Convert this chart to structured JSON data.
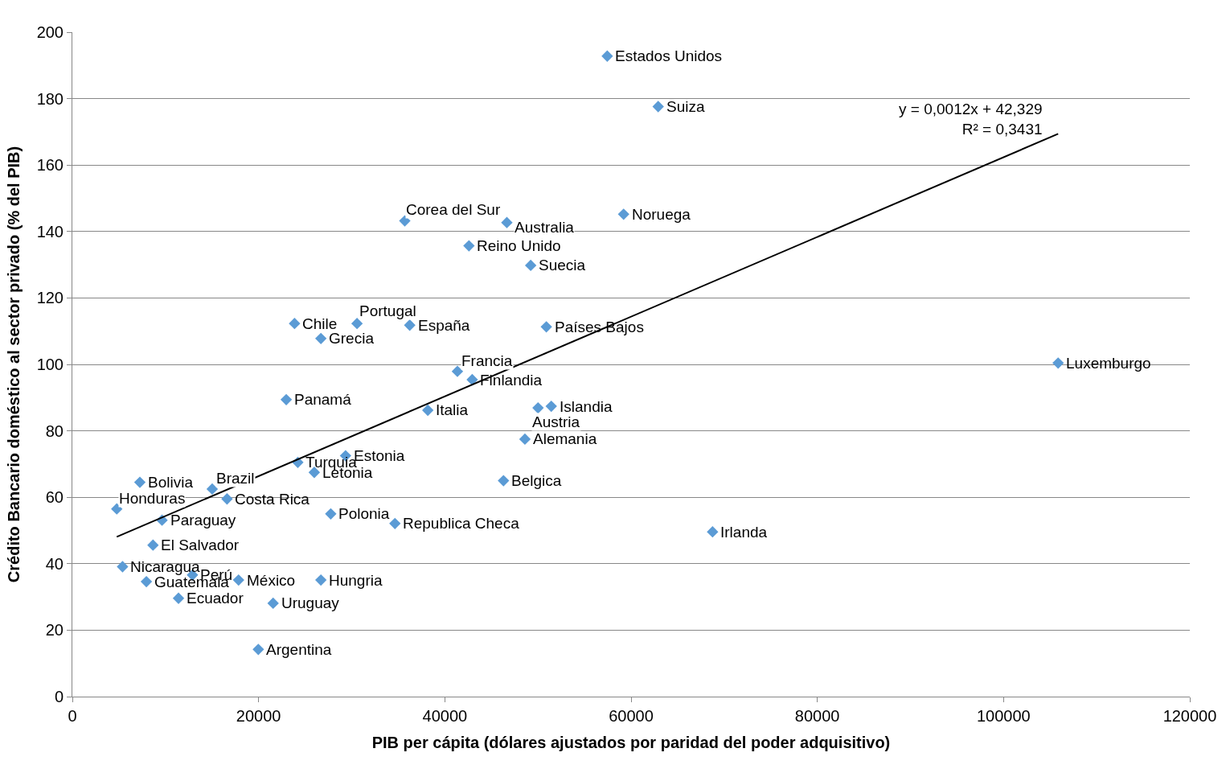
{
  "chart_data": {
    "type": "scatter",
    "xlabel": "PIB per cápita (dólares ajustados por paridad del poder adquisitivo)",
    "ylabel": "Crédito Bancario doméstico al sector privado (% del PIB)",
    "xlim": [
      0,
      120000
    ],
    "xticks": [
      0,
      20000,
      40000,
      60000,
      80000,
      100000,
      120000
    ],
    "ylim": [
      0,
      200
    ],
    "yticks": [
      0,
      20,
      40,
      60,
      80,
      100,
      120,
      140,
      160,
      180,
      200
    ],
    "grid": "y",
    "series": [
      {
        "marker": "diamond",
        "color": "#5b9bd5",
        "x": [
          57440,
          62910,
          59200,
          35700,
          46660,
          42590,
          49220,
          30570,
          23860,
          36230,
          26690,
          50900,
          105860,
          41350,
          42940,
          22970,
          38170,
          50010,
          51430,
          48600,
          29340,
          24210,
          25980,
          7250,
          46300,
          15020,
          16610,
          4770,
          27750,
          9630,
          34640,
          68750,
          8660,
          5390,
          7950,
          12900,
          17850,
          26690,
          11400,
          21560,
          19970
        ],
        "values": [
          192.8,
          177.6,
          145.2,
          143.2,
          142.7,
          135.7,
          129.8,
          112.3,
          112.3,
          111.8,
          107.8,
          111.3,
          100.4,
          97.9,
          95.4,
          89.4,
          86.2,
          86.9,
          87.4,
          77.5,
          72.5,
          70.5,
          67.5,
          64.5,
          65.0,
          62.5,
          59.5,
          56.5,
          55.0,
          53.1,
          52.1,
          49.6,
          45.6,
          39.1,
          34.6,
          36.6,
          35.1,
          35.1,
          29.6,
          28.1,
          14.2
        ]
      },
      {
        "type": "line",
        "marker": "none",
        "color": "#000000",
        "x": [
          4770,
          105860
        ],
        "values": [
          48.1,
          169.4
        ]
      }
    ],
    "annotations": [
      {
        "text": "Estados Unidos",
        "x": 57440,
        "y": 192.8
      },
      {
        "text": "Suiza",
        "x": 62910,
        "y": 177.6
      },
      {
        "text": "Noruega",
        "x": 59200,
        "y": 145.2
      },
      {
        "text": "Corea del Sur",
        "x": 35700,
        "y": 143.2
      },
      {
        "text": "Australia",
        "x": 46660,
        "y": 142.7
      },
      {
        "text": "Reino Unido",
        "x": 42590,
        "y": 135.7
      },
      {
        "text": "Suecia",
        "x": 49220,
        "y": 129.8
      },
      {
        "text": "Portugal",
        "x": 30570,
        "y": 112.3
      },
      {
        "text": "Chile",
        "x": 23860,
        "y": 112.3
      },
      {
        "text": "España",
        "x": 36230,
        "y": 111.8
      },
      {
        "text": "Grecia",
        "x": 26690,
        "y": 107.8
      },
      {
        "text": "Países Bajos",
        "x": 50900,
        "y": 111.3
      },
      {
        "text": "Luxemburgo",
        "x": 105860,
        "y": 100.4
      },
      {
        "text": "Francia",
        "x": 41350,
        "y": 97.9
      },
      {
        "text": "Finlandia",
        "x": 42940,
        "y": 95.4
      },
      {
        "text": "Panamá",
        "x": 22970,
        "y": 89.4
      },
      {
        "text": "Italia",
        "x": 38170,
        "y": 86.2
      },
      {
        "text": "Austria",
        "x": 50010,
        "y": 86.9
      },
      {
        "text": "Islandia",
        "x": 51430,
        "y": 87.4
      },
      {
        "text": "Alemania",
        "x": 48600,
        "y": 77.5
      },
      {
        "text": "Estonia",
        "x": 29340,
        "y": 72.5
      },
      {
        "text": "Turquia",
        "x": 24210,
        "y": 70.5
      },
      {
        "text": "Letonia",
        "x": 25980,
        "y": 67.5
      },
      {
        "text": "Bolivia",
        "x": 7250,
        "y": 64.5
      },
      {
        "text": "Belgica",
        "x": 46300,
        "y": 65.0
      },
      {
        "text": "Brazil",
        "x": 15020,
        "y": 62.5
      },
      {
        "text": "Costa Rica",
        "x": 16610,
        "y": 59.5
      },
      {
        "text": "Honduras",
        "x": 4770,
        "y": 56.5
      },
      {
        "text": "Polonia",
        "x": 27750,
        "y": 55.0
      },
      {
        "text": "Paraguay",
        "x": 9630,
        "y": 53.1
      },
      {
        "text": "Republica Checa",
        "x": 34640,
        "y": 52.1
      },
      {
        "text": "Irlanda",
        "x": 68750,
        "y": 49.6
      },
      {
        "text": "El Salvador",
        "x": 8660,
        "y": 45.6
      },
      {
        "text": "Nicaragua",
        "x": 5390,
        "y": 39.1
      },
      {
        "text": "Guatemala",
        "x": 7950,
        "y": 34.6
      },
      {
        "text": "Perú",
        "x": 12900,
        "y": 36.6
      },
      {
        "text": "México",
        "x": 17850,
        "y": 35.1
      },
      {
        "text": "Hungria",
        "x": 26690,
        "y": 35.1
      },
      {
        "text": "Ecuador",
        "x": 11400,
        "y": 29.6
      },
      {
        "text": "Uruguay",
        "x": 21560,
        "y": 28.1
      },
      {
        "text": "Argentina",
        "x": 19970,
        "y": 14.2
      },
      "y = 0,0012x + 42,329",
      "R² = 0,3431"
    ]
  }
}
